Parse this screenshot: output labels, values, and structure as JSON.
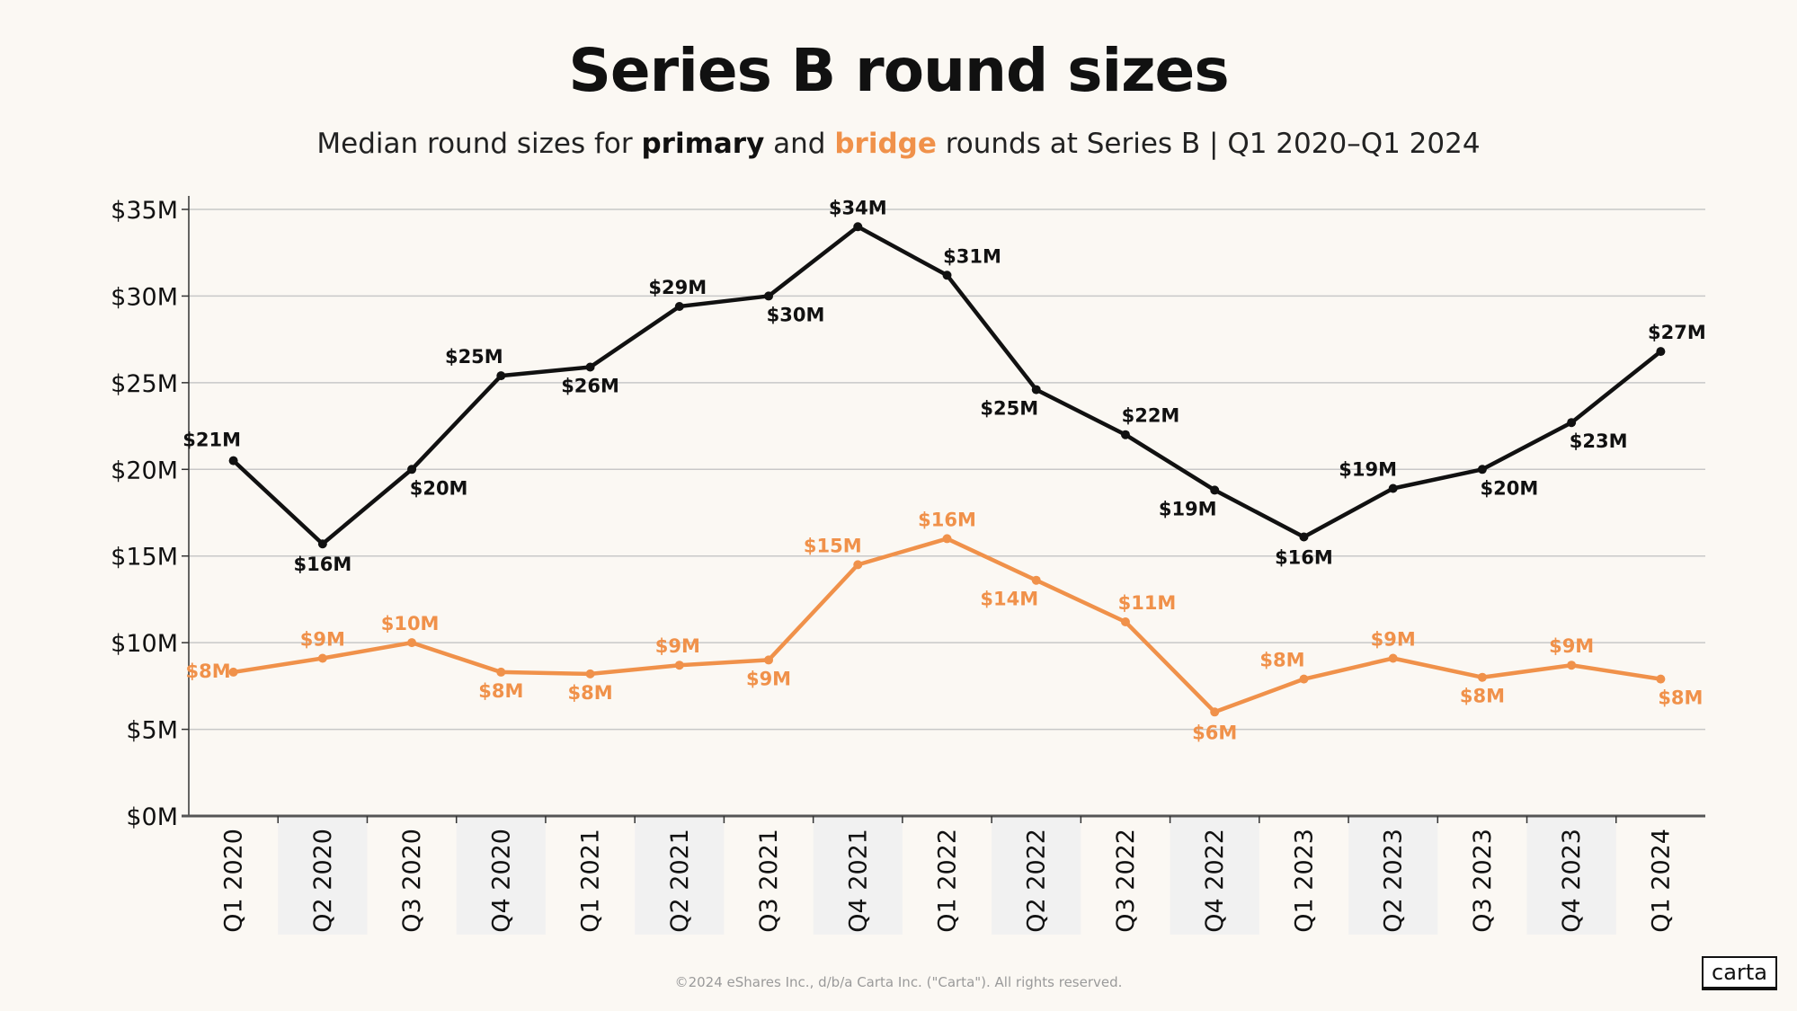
{
  "title": "Series B round sizes",
  "subtitle": {
    "prefix": "Median round sizes for ",
    "primary": "primary",
    "and": " and ",
    "bridge": "bridge",
    "suffix": " rounds at  Series B | Q1 2020–Q1 2024"
  },
  "footer": "©2024 eShares Inc., d/b/a Carta Inc. (\"Carta\"). All rights reserved.",
  "logo": "carta",
  "colors": {
    "primary": "#111111",
    "bridge": "#f0914a",
    "background": "#fbf8f3",
    "grid": "#c8c8c8",
    "band": "#f1f1f1"
  },
  "chart_data": {
    "type": "line",
    "title": "Series B round sizes",
    "xlabel": "",
    "ylabel": "",
    "ylim": [
      0,
      35
    ],
    "y_ticks": [
      0,
      5,
      10,
      15,
      20,
      25,
      30,
      35
    ],
    "y_tick_labels": [
      "$0M",
      "$5M",
      "$10M",
      "$15M",
      "$20M",
      "$25M",
      "$30M",
      "$35M"
    ],
    "grid": true,
    "categories": [
      "Q1 2020",
      "Q2 2020",
      "Q3 2020",
      "Q4 2020",
      "Q1 2021",
      "Q2 2021",
      "Q3 2021",
      "Q4 2021",
      "Q1 2022",
      "Q2 2022",
      "Q3 2022",
      "Q4 2022",
      "Q1 2023",
      "Q2 2023",
      "Q3 2023",
      "Q4 2023",
      "Q1 2024"
    ],
    "series": [
      {
        "name": "primary",
        "color": "#111111",
        "values": [
          20.5,
          15.7,
          20.0,
          25.4,
          25.9,
          29.4,
          30.0,
          34.0,
          31.2,
          24.6,
          22.0,
          18.8,
          16.1,
          18.9,
          20.0,
          22.7,
          26.8
        ],
        "labels": [
          "$21M",
          "$16M",
          "$20M",
          "$25M",
          "$26M",
          "$29M",
          "$30M",
          "$34M",
          "$31M",
          "$25M",
          "$22M",
          "$19M",
          "$16M",
          "$19M",
          "$20M",
          "$23M",
          "$27M"
        ]
      },
      {
        "name": "bridge",
        "color": "#f0914a",
        "values": [
          8.3,
          9.1,
          10.0,
          8.3,
          8.2,
          8.7,
          9.0,
          14.5,
          16.0,
          13.6,
          11.2,
          6.0,
          7.9,
          9.1,
          8.0,
          8.7,
          7.9
        ],
        "labels": [
          "$8M",
          "$9M",
          "$10M",
          "$8M",
          "$8M",
          "$9M",
          "$9M",
          "$15M",
          "$16M",
          "$14M",
          "$11M",
          "$6M",
          "$8M",
          "$9M",
          "$8M",
          "$9M",
          "$8M"
        ]
      }
    ]
  }
}
